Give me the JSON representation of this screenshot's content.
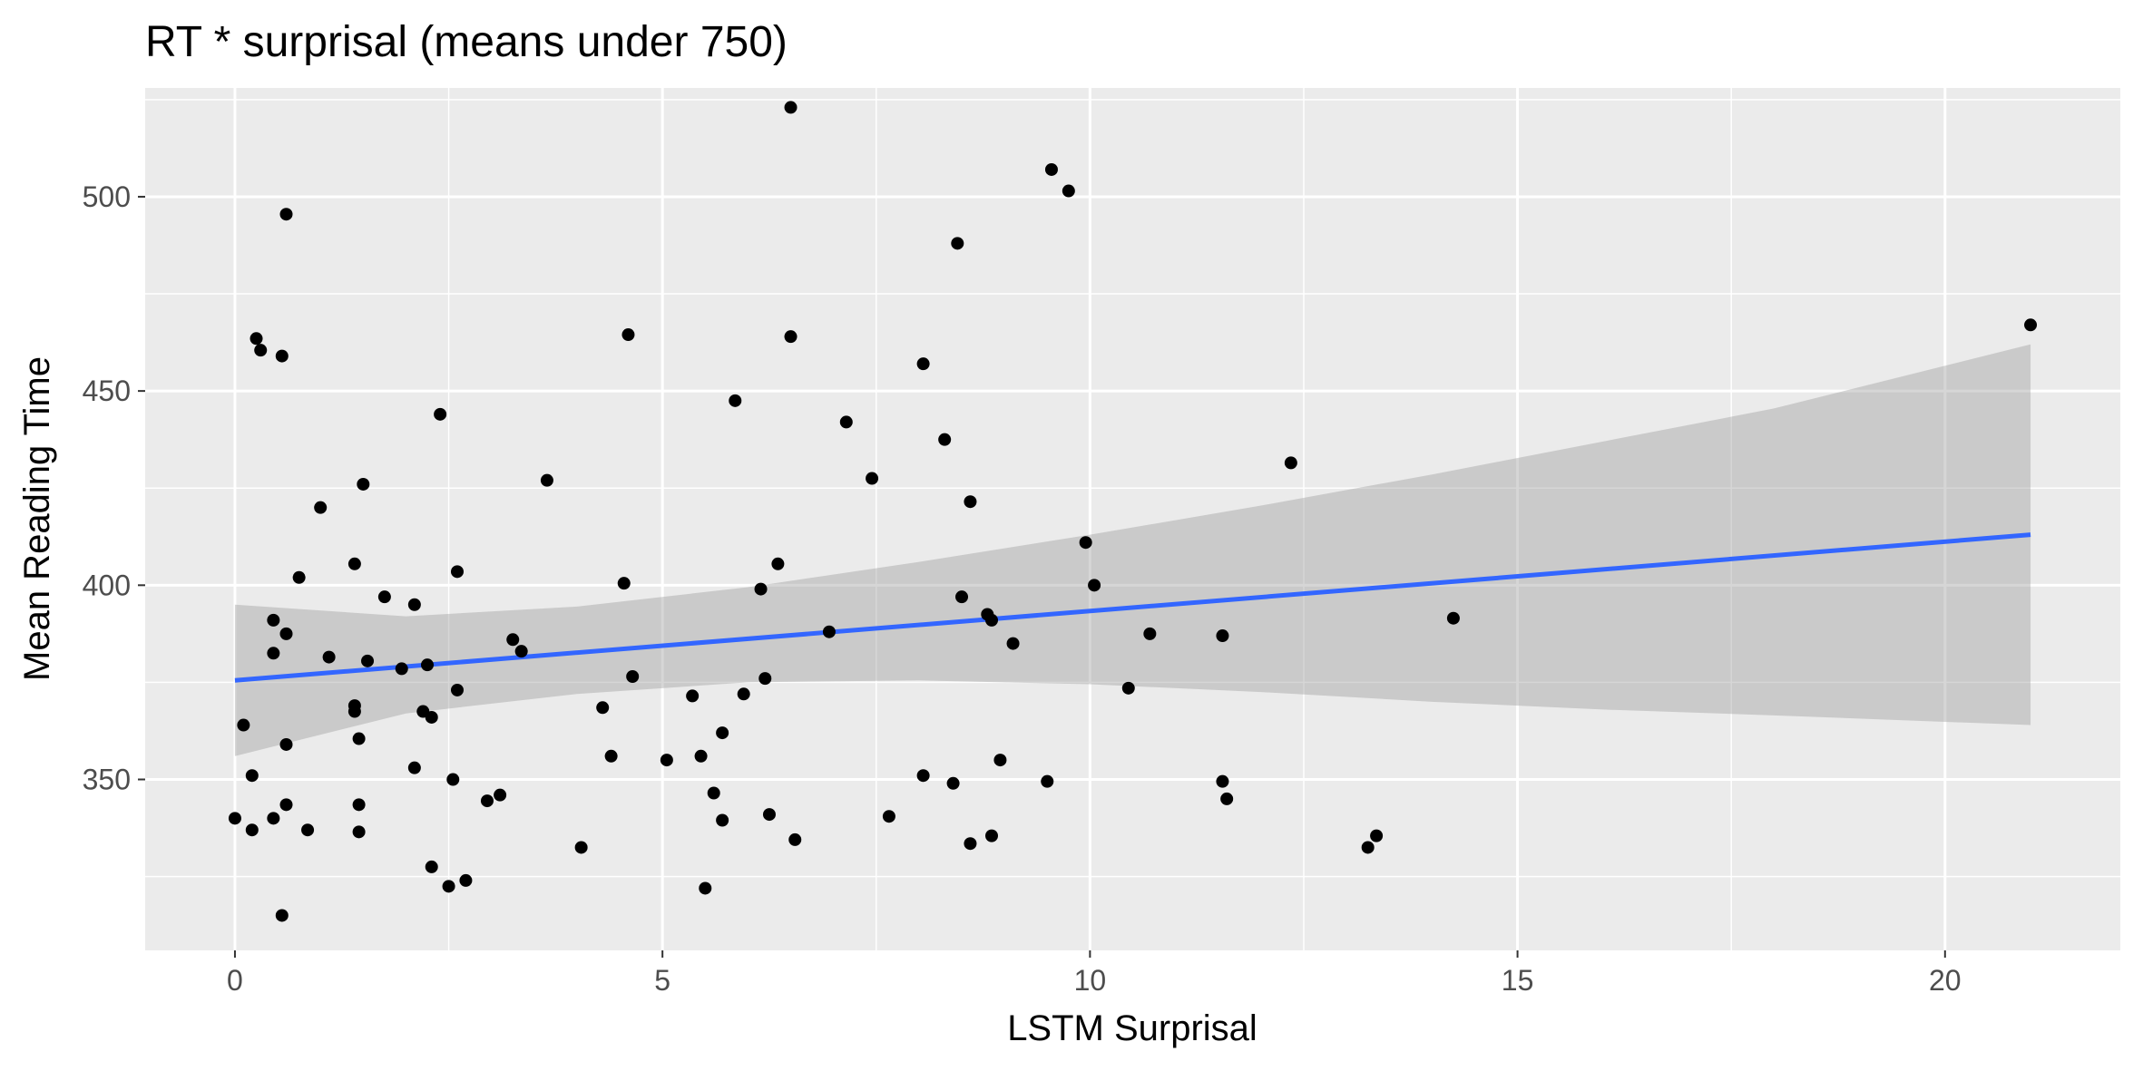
{
  "chart_data": {
    "type": "scatter",
    "title": "RT * surprisal (means under 750)",
    "xlabel": "LSTM Surprisal",
    "ylabel": "Mean Reading Time",
    "xlim": [
      -1.05,
      22.05
    ],
    "ylim": [
      306,
      528
    ],
    "x_ticks": [
      0,
      5,
      10,
      15,
      20
    ],
    "y_ticks": [
      350,
      400,
      450,
      500
    ],
    "x_tick_labels": [
      "0",
      "5",
      "10",
      "15",
      "20"
    ],
    "y_tick_labels": [
      "350",
      "400",
      "450",
      "500"
    ],
    "grid": true,
    "panel_background": "#ebebeb",
    "grid_color": "#ffffff",
    "point_color": "#000000",
    "fit_line_color": "#3366ff",
    "ribbon_color": "#999999",
    "fit_line": {
      "x": [
        0,
        21
      ],
      "y": [
        375.5,
        413
      ]
    },
    "confidence_band": {
      "x": [
        0,
        2,
        4,
        6,
        8,
        10,
        12,
        14,
        16,
        18,
        21
      ],
      "lower": [
        356,
        367,
        372,
        375,
        375.5,
        374.5,
        372.5,
        370,
        368,
        366.5,
        364
      ],
      "upper": [
        395,
        392,
        394.5,
        399.5,
        406,
        413,
        420.5,
        428.5,
        437,
        445.5,
        462
      ]
    },
    "points": [
      {
        "x": 0.0,
        "y": 340
      },
      {
        "x": 0.1,
        "y": 364
      },
      {
        "x": 0.2,
        "y": 337
      },
      {
        "x": 0.2,
        "y": 351
      },
      {
        "x": 0.25,
        "y": 463.5
      },
      {
        "x": 0.3,
        "y": 460.5
      },
      {
        "x": 0.45,
        "y": 340
      },
      {
        "x": 0.45,
        "y": 391
      },
      {
        "x": 0.45,
        "y": 382.5
      },
      {
        "x": 0.55,
        "y": 459
      },
      {
        "x": 0.55,
        "y": 315
      },
      {
        "x": 0.6,
        "y": 343.5
      },
      {
        "x": 0.6,
        "y": 495.5
      },
      {
        "x": 0.6,
        "y": 387.5
      },
      {
        "x": 0.6,
        "y": 359
      },
      {
        "x": 0.75,
        "y": 402
      },
      {
        "x": 0.85,
        "y": 337
      },
      {
        "x": 1.0,
        "y": 420
      },
      {
        "x": 1.1,
        "y": 381.5
      },
      {
        "x": 1.4,
        "y": 405.5
      },
      {
        "x": 1.4,
        "y": 369
      },
      {
        "x": 1.4,
        "y": 367.5
      },
      {
        "x": 1.45,
        "y": 360.5
      },
      {
        "x": 1.45,
        "y": 343.5
      },
      {
        "x": 1.45,
        "y": 336.5
      },
      {
        "x": 1.5,
        "y": 426
      },
      {
        "x": 1.55,
        "y": 380.5
      },
      {
        "x": 1.75,
        "y": 397
      },
      {
        "x": 1.95,
        "y": 378.5
      },
      {
        "x": 2.1,
        "y": 353
      },
      {
        "x": 2.1,
        "y": 395
      },
      {
        "x": 2.2,
        "y": 367.5
      },
      {
        "x": 2.25,
        "y": 379.5
      },
      {
        "x": 2.3,
        "y": 366
      },
      {
        "x": 2.3,
        "y": 327.5
      },
      {
        "x": 2.4,
        "y": 444
      },
      {
        "x": 2.5,
        "y": 322.5
      },
      {
        "x": 2.55,
        "y": 350
      },
      {
        "x": 2.6,
        "y": 373
      },
      {
        "x": 2.6,
        "y": 403.5
      },
      {
        "x": 2.7,
        "y": 324
      },
      {
        "x": 2.95,
        "y": 344.5
      },
      {
        "x": 3.1,
        "y": 346
      },
      {
        "x": 3.25,
        "y": 386
      },
      {
        "x": 3.35,
        "y": 383
      },
      {
        "x": 3.65,
        "y": 427
      },
      {
        "x": 4.05,
        "y": 332.5
      },
      {
        "x": 4.3,
        "y": 368.5
      },
      {
        "x": 4.4,
        "y": 356
      },
      {
        "x": 4.55,
        "y": 400.5
      },
      {
        "x": 4.6,
        "y": 464.5
      },
      {
        "x": 4.65,
        "y": 376.5
      },
      {
        "x": 5.05,
        "y": 355
      },
      {
        "x": 5.35,
        "y": 371.5
      },
      {
        "x": 5.45,
        "y": 356
      },
      {
        "x": 5.5,
        "y": 322
      },
      {
        "x": 5.6,
        "y": 346.5
      },
      {
        "x": 5.7,
        "y": 362
      },
      {
        "x": 5.7,
        "y": 339.5
      },
      {
        "x": 5.85,
        "y": 447.5
      },
      {
        "x": 5.95,
        "y": 372
      },
      {
        "x": 6.15,
        "y": 399
      },
      {
        "x": 6.2,
        "y": 376
      },
      {
        "x": 6.25,
        "y": 341
      },
      {
        "x": 6.35,
        "y": 405.5
      },
      {
        "x": 6.5,
        "y": 523
      },
      {
        "x": 6.5,
        "y": 464
      },
      {
        "x": 6.55,
        "y": 334.5
      },
      {
        "x": 6.95,
        "y": 388
      },
      {
        "x": 7.15,
        "y": 442
      },
      {
        "x": 7.45,
        "y": 427.5
      },
      {
        "x": 7.65,
        "y": 340.5
      },
      {
        "x": 8.05,
        "y": 457
      },
      {
        "x": 8.05,
        "y": 351
      },
      {
        "x": 8.3,
        "y": 437.5
      },
      {
        "x": 8.4,
        "y": 349
      },
      {
        "x": 8.45,
        "y": 488
      },
      {
        "x": 8.5,
        "y": 397
      },
      {
        "x": 8.6,
        "y": 421.5
      },
      {
        "x": 8.6,
        "y": 333.5
      },
      {
        "x": 8.8,
        "y": 392.5
      },
      {
        "x": 8.85,
        "y": 391
      },
      {
        "x": 8.85,
        "y": 335.5
      },
      {
        "x": 8.95,
        "y": 355
      },
      {
        "x": 9.1,
        "y": 385
      },
      {
        "x": 9.5,
        "y": 349.5
      },
      {
        "x": 9.55,
        "y": 507
      },
      {
        "x": 9.75,
        "y": 501.5
      },
      {
        "x": 9.95,
        "y": 411
      },
      {
        "x": 10.05,
        "y": 400
      },
      {
        "x": 10.45,
        "y": 373.5
      },
      {
        "x": 10.7,
        "y": 387.5
      },
      {
        "x": 11.55,
        "y": 387
      },
      {
        "x": 11.55,
        "y": 349.5
      },
      {
        "x": 11.6,
        "y": 345
      },
      {
        "x": 12.35,
        "y": 431.5
      },
      {
        "x": 13.25,
        "y": 332.5
      },
      {
        "x": 13.35,
        "y": 335.5
      },
      {
        "x": 14.25,
        "y": 391.5
      },
      {
        "x": 21.0,
        "y": 467
      }
    ]
  }
}
